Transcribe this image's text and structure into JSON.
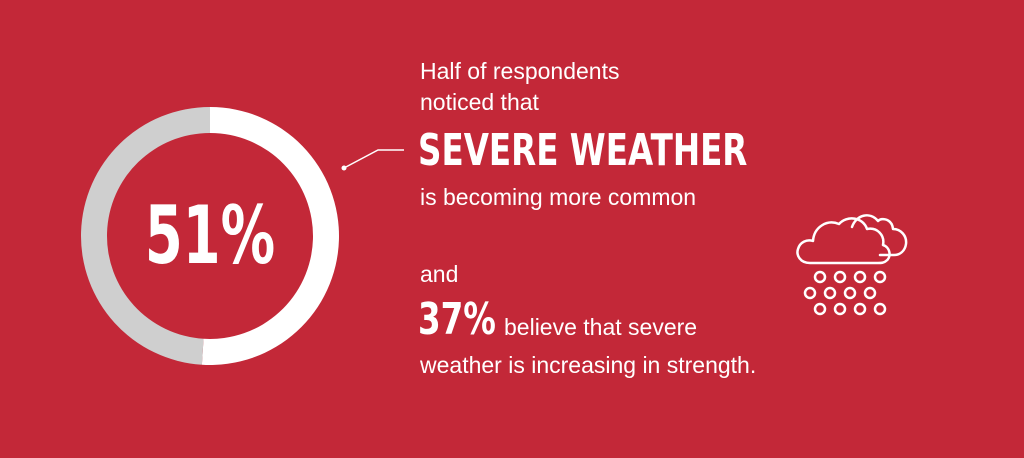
{
  "colors": {
    "background": "#c32838",
    "ring_filled": "#ffffff",
    "ring_remaining": "#cfcfcf",
    "text": "#ffffff"
  },
  "chart_data": {
    "type": "pie",
    "variant": "donut",
    "value": 51,
    "value_label": "51%",
    "slices": [
      {
        "label": "",
        "value": 51,
        "color": "#ffffff"
      },
      {
        "label": "",
        "value": 49,
        "color": "#cfcfcf"
      }
    ]
  },
  "text": {
    "intro_line1": "Half of  respondents",
    "intro_line2": "noticed that",
    "headline": "SEVERE WEATHER",
    "subline": "is becoming more common",
    "and": "and",
    "stat_number": "37%",
    "stat_text_line1": "believe that severe",
    "stat_text_line2": "weather is increasing in strength."
  },
  "icons": {
    "weather": "snow-cloud-icon"
  }
}
